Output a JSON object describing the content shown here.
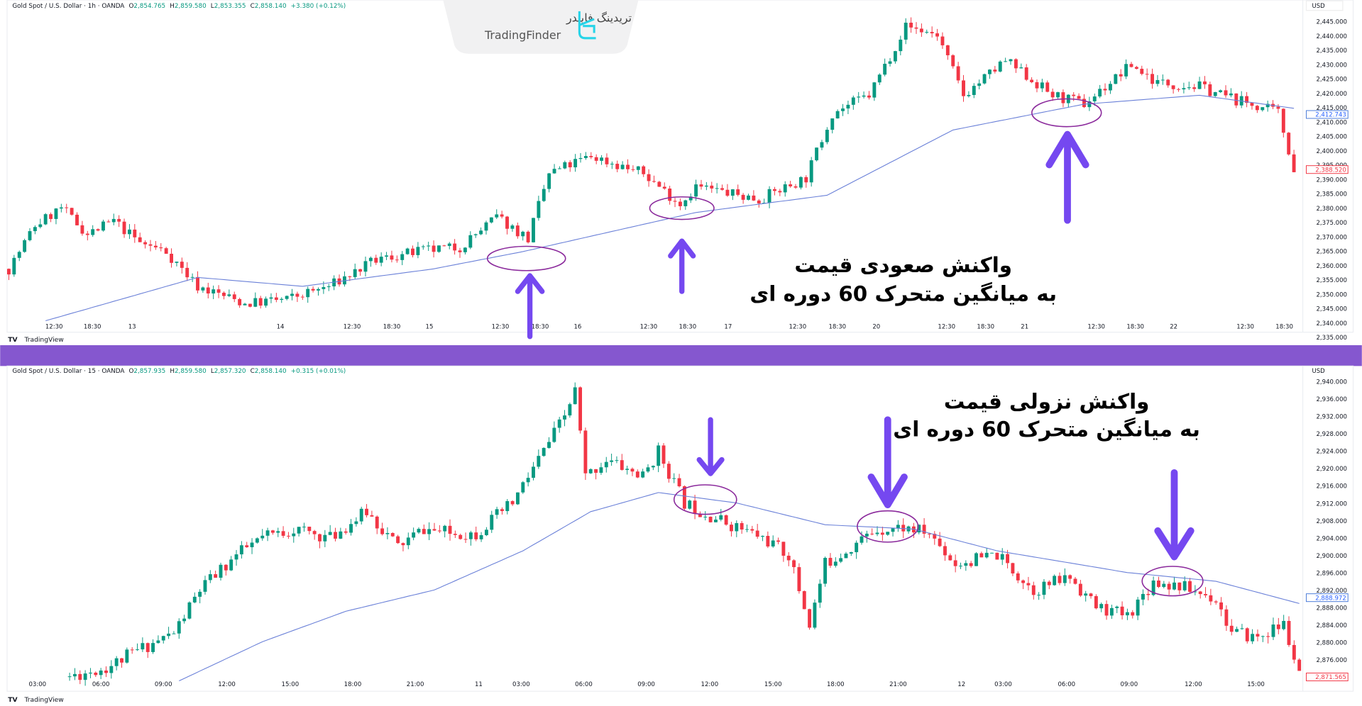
{
  "colors": {
    "up": "#089981",
    "down": "#f23645",
    "ma": "#6a80d8",
    "separator": "#8557cf",
    "annotation": "#7548f0",
    "ring": "#8b2a9c"
  },
  "logo": {
    "fa": "تریدینگ فایندر",
    "en": "TradingFinder"
  },
  "top": {
    "header": {
      "symbol": "Gold Spot / U.S. Dollar · 1h · OANDA",
      "o_label": "O",
      "o": "2,854.765",
      "h_label": "H",
      "h": "2,859.580",
      "l_label": "L",
      "l": "2,853.355",
      "c_label": "C",
      "c": "2,858.140",
      "change": "+3.380 (+0.12%)"
    },
    "currency": "USD",
    "price_labels": [
      "2,445.000",
      "2,440.000",
      "2,435.000",
      "2,430.000",
      "2,425.000",
      "2,420.000",
      "2,415.000",
      "2,410.000",
      "2,405.000",
      "2,400.000",
      "2,395.000",
      "2,390.000",
      "2,385.000",
      "2,380.000",
      "2,375.000",
      "2,370.000",
      "2,365.000",
      "2,360.000",
      "2,355.000",
      "2,350.000",
      "2,345.000",
      "2,340.000",
      "2,335.000"
    ],
    "ma_price": "2,412.743",
    "last_price": "2,388.520",
    "time_labels": [
      "12:30",
      "18:30",
      "13",
      "14",
      "12:30",
      "18:30",
      "15",
      "12:30",
      "18:30",
      "16",
      "12:30",
      "18:30",
      "17",
      "12:30",
      "18:30",
      "20",
      "12:30",
      "18:30",
      "21",
      "12:30",
      "18:30",
      "22",
      "12:30",
      "18:30"
    ],
    "annotation": {
      "line1": "واکنش صعودی قیمت",
      "line2": "به میانگین متحرک 60 دوره ای"
    },
    "branding": "TradingView",
    "closes": [
      [
        0,
        2350.3
      ],
      [
        5,
        2366.9
      ],
      [
        10,
        2373.6
      ],
      [
        15,
        2363.6
      ],
      [
        20,
        2368.6
      ],
      [
        25,
        2360.3
      ],
      [
        30,
        2356.9
      ],
      [
        36,
        2343.6
      ],
      [
        45,
        2337.0
      ],
      [
        53,
        2338.7
      ],
      [
        61,
        2343.6
      ],
      [
        70,
        2353.6
      ],
      [
        78,
        2356.9
      ],
      [
        86,
        2358.6
      ],
      [
        93,
        2370.2
      ],
      [
        99,
        2361.9
      ],
      [
        103,
        2386.8
      ],
      [
        111,
        2393.5
      ],
      [
        121,
        2386.8
      ],
      [
        128,
        2375.2
      ],
      [
        131,
        2381.9
      ],
      [
        143,
        2376.9
      ],
      [
        152,
        2385.2
      ],
      [
        157,
        2410.1
      ],
      [
        164,
        2416.8
      ],
      [
        171,
        2443.3
      ],
      [
        177,
        2440.0
      ],
      [
        182,
        2416.8
      ],
      [
        190,
        2430.0
      ],
      [
        199,
        2416.8
      ],
      [
        205,
        2413.4
      ],
      [
        214,
        2428.4
      ],
      [
        219,
        2421.7
      ],
      [
        227,
        2420.1
      ],
      [
        234,
        2415.1
      ],
      [
        242,
        2410.1
      ],
      [
        245,
        2388.5
      ]
    ],
    "ma": [
      [
        7,
        2330.4
      ],
      [
        36,
        2347.0
      ],
      [
        56,
        2343.6
      ],
      [
        81,
        2350.3
      ],
      [
        98,
        2356.9
      ],
      [
        131,
        2371.9
      ],
      [
        156,
        2378.5
      ],
      [
        180,
        2403.5
      ],
      [
        205,
        2413.4
      ],
      [
        227,
        2416.8
      ],
      [
        245,
        2411.8
      ]
    ]
  },
  "bottom": {
    "header": {
      "symbol": "Gold Spot / U.S. Dollar · 15 · OANDA",
      "o_label": "O",
      "o": "2,857.935",
      "h_label": "H",
      "h": "2,859.580",
      "l_label": "L",
      "l": "2,857.320",
      "c_label": "C",
      "c": "2,858.140",
      "change": "+0.315 (+0.01%)"
    },
    "currency": "USD",
    "price_labels": [
      "2,940.000",
      "2,936.000",
      "2,932.000",
      "2,928.000",
      "2,924.000",
      "2,920.000",
      "2,916.000",
      "2,912.000",
      "2,908.000",
      "2,904.000",
      "2,900.000",
      "2,896.000",
      "2,892.000",
      "2,888.000",
      "2,884.000",
      "2,880.000",
      "2,876.000"
    ],
    "ma_price": "2,888.972",
    "last_price": "2,871.565",
    "time_labels": [
      "03:00",
      "06:00",
      "09:00",
      "12:00",
      "15:00",
      "18:00",
      "21:00",
      "11",
      "03:00",
      "06:00",
      "09:00",
      "12:00",
      "15:00",
      "18:00",
      "21:00",
      "12",
      "03:00",
      "06:00",
      "09:00",
      "12:00",
      "15:00"
    ],
    "annotation": {
      "line1": "واکنش نزولی قیمت",
      "line2": "به میانگین متحرک 60 دوره ای"
    },
    "branding": "TradingView",
    "closes": [
      [
        0,
        2872.2
      ],
      [
        7,
        2874.2
      ],
      [
        13,
        2878.2
      ],
      [
        20,
        2882.2
      ],
      [
        25,
        2892.1
      ],
      [
        32,
        2900.1
      ],
      [
        37,
        2904.1
      ],
      [
        43,
        2906.1
      ],
      [
        50,
        2904.1
      ],
      [
        57,
        2910.1
      ],
      [
        63,
        2902.1
      ],
      [
        68,
        2906.1
      ],
      [
        73,
        2905.1
      ],
      [
        78,
        2905.1
      ],
      [
        85,
        2912.1
      ],
      [
        90,
        2922.1
      ],
      [
        95,
        2932.0
      ],
      [
        97,
        2938.0
      ],
      [
        99,
        2918.1
      ],
      [
        103,
        2922.1
      ],
      [
        110,
        2918.1
      ],
      [
        113,
        2924.0
      ],
      [
        118,
        2912.1
      ],
      [
        125,
        2908.1
      ],
      [
        133,
        2904.1
      ],
      [
        138,
        2900.1
      ],
      [
        142,
        2884.2
      ],
      [
        145,
        2898.1
      ],
      [
        150,
        2902.1
      ],
      [
        155,
        2906.1
      ],
      [
        160,
        2906.5
      ],
      [
        165,
        2905.1
      ],
      [
        170,
        2898.1
      ],
      [
        178,
        2900.1
      ],
      [
        185,
        2892.1
      ],
      [
        192,
        2895.1
      ],
      [
        197,
        2888.2
      ],
      [
        203,
        2886.2
      ],
      [
        208,
        2894.1
      ],
      [
        213,
        2893.1
      ],
      [
        220,
        2890.1
      ],
      [
        223,
        2882.2
      ],
      [
        228,
        2881.2
      ],
      [
        233,
        2884.2
      ],
      [
        236,
        2872.2
      ]
    ],
    "ma": [
      [
        21,
        2871.2
      ],
      [
        37,
        2880.2
      ],
      [
        53,
        2887.2
      ],
      [
        70,
        2892.1
      ],
      [
        87,
        2901.1
      ],
      [
        100,
        2910.1
      ],
      [
        113,
        2914.5
      ],
      [
        128,
        2912.1
      ],
      [
        145,
        2907.1
      ],
      [
        162,
        2906.1
      ],
      [
        178,
        2901.1
      ],
      [
        203,
        2896.1
      ],
      [
        220,
        2894.1
      ],
      [
        236,
        2889.0
      ]
    ]
  }
}
